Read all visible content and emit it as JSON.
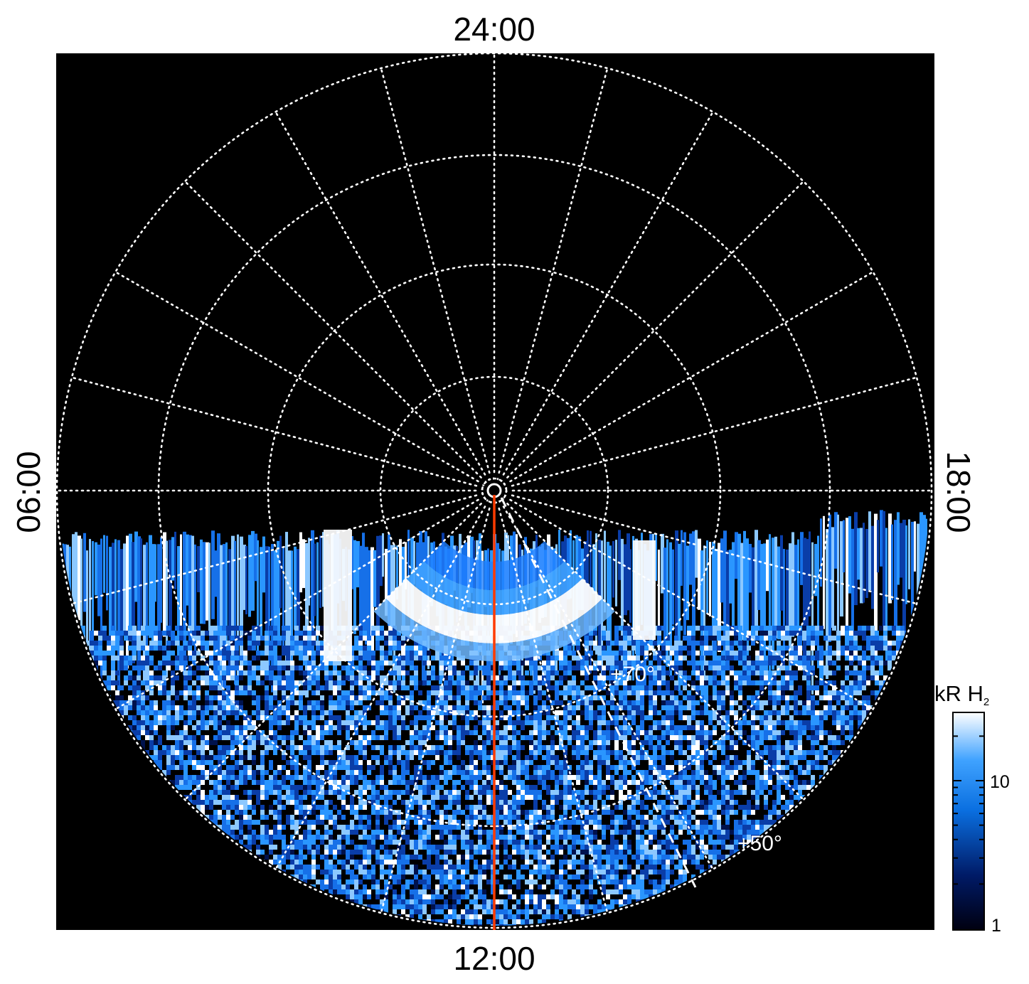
{
  "figure": {
    "time_labels": {
      "top": "24:00",
      "bottom": "12:00",
      "left": "06:00",
      "right": "18:00"
    },
    "latitude_labels": [
      "+70°",
      "+50°"
    ],
    "colorbar": {
      "title": "kR H",
      "title_subscript": "2",
      "tick_labels": [
        "10",
        "1"
      ],
      "scale": "log",
      "range": [
        1,
        30
      ]
    },
    "colors": {
      "background": "#000000",
      "grid": "#ffffff",
      "meridian_line": "#ff3b00",
      "low": "#000033",
      "mid": "#1e8fff",
      "high": "#ffffff"
    }
  }
}
